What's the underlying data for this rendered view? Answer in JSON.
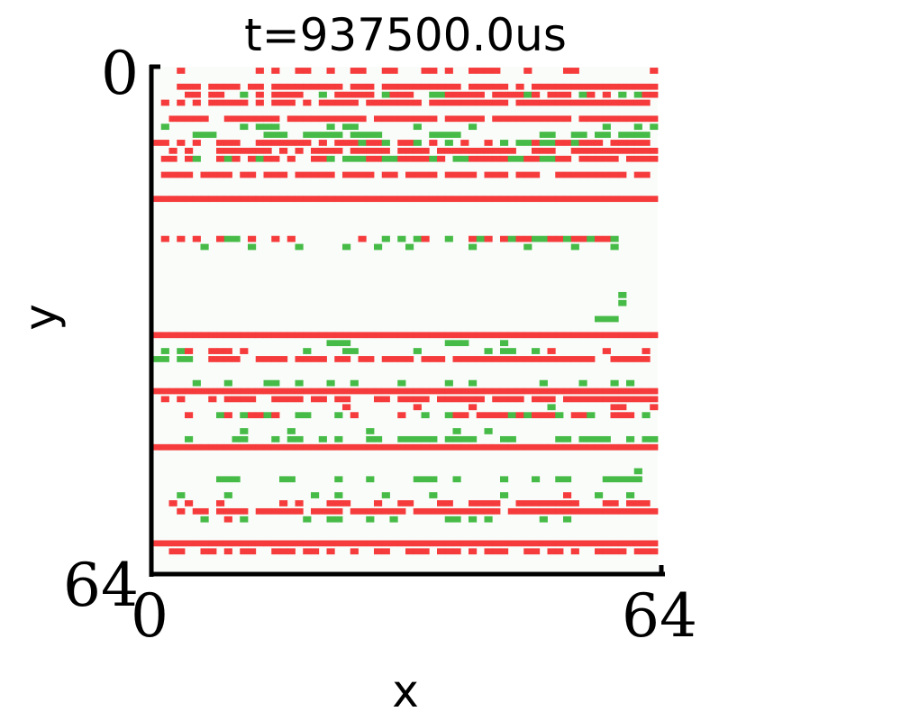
{
  "chart_data": {
    "type": "heatmap",
    "title": "t=937500.0us",
    "xlabel": "x",
    "ylabel": "y",
    "xlim": [
      0,
      64
    ],
    "ylim": [
      64,
      0
    ],
    "x_ticks": [
      "0",
      "64"
    ],
    "y_ticks": [
      "0",
      "64"
    ],
    "grid": false,
    "colors": {
      "background": "#f9fcf9",
      "red": "#f53b3b",
      "green": "#47bb47"
    },
    "legend": {
      "r": "red",
      "g": "green"
    },
    "cells": [
      "...r.........r.r..rr..r..rr..rr...rr.r..rrrr...r....rr.........r",
      "................................................................",
      "...rrr.rrrr.rr.rrrrrrrrr.rrr.rrrrrrrrrr.rrrrr.r.rrrrrrrrrrrrrrrr",
      "....rr.rr..g.r.rrrr..g.rrrrr.grrr..ggrrrrr.rrrrgr.rrr.gr.r.g.grr",
      ".r.r.r.rrrrr.r.rrr.r.rrrrr.rrrrrrr.rrrrrrrrrr.rrrrrrrrrrrrrrrrr.",
      "................................................................",
      "..rrrrr..rrrrrrr.rrrrrrrrrr.rrrrrrrr.rrrrr.rrrrrrrrrr.rrrrrrrrrr",
      ".g.........g.ggg......g.gg.......g......g................g...g.g",
      ".....ggg......ggg..ggggg.gggg......gggg..........gg..gg.gg.gggg.",
      "rr.r.r..rrr..rrrrrrr.r.rrrgrrg.rrg.r.g.r..r.g.ggrggrrgrrr.rrrrr.",
      "..r.r...rrrrrrr.r.r.rrrr.rrrrr.rrrr.rrrrrrrrrr..rrr..rrrrrrrrrrr",
      ".rr.rg..rgr.rgrr.r..rrg.gggrrggrrrrgr.ggrrrrrggrrggrr.rrrrr.rrrr",
      "................................................................",
      ".rrrr.rrrr.rr.rrr.rrrrr.rrrr.rr.rrrr.rrrr.rrr.rrr..rrrrrrrrr.rr.",
      "................................................................",
      "................................................................",
      "rrrrrrrrrrrrrrrrrrrrrrrrrrrrrrrrrrrrrrrrrrrrrrrrrrrrrrrrrrrrrrrr",
      "................................................................",
      "................................................................",
      "................................................................",
      "................................................................",
      ".r.r.r..rgg.r..r.r........r..g.g.gr..g..rgr.rgrrggrrgrrgrrg.....",
      "......g.....g.....g.....g...g...g.......g......g.....g....g.....",
      "................................................................",
      "................................................................",
      "................................................................",
      "................................................................",
      "................................................................",
      "...........................................................g....",
      "...........................................................g....",
      "................................................................",
      "........................................................ggg.....",
      "................................................................",
      "rrrrrrrrrrrrrrrrrrrrrrrrrrrrrrrrrrrrrrrrrrrrrrrrrrrrrrrrrrrrrrrr",
      "......................ggg............ggg....g...................",
      ".g.gr..rrr.r.......g....gg.......g........g.gg..g.r......r....r.",
      "gg.gg..rrrr..rrrr.rrrr.rr.rr.rrrr.rrr.rrrrrrrrrrrrrrrrrr..rrrrr.",
      "................................................................",
      "................................................................",
      ".....g...g....gg..g...g..g.....g.....g..g........g....g...g.g...",
      "rrrrrrrrrrrrrrrrrrrrrrrrrrrrrrrrrrrrrrrrrrrrrrrrrrrrrrrrrrrrrrrr",
      ".r.r...r.rrrr..rrrr.rr.rr...rr.rrrr.rrrrrr.rrrr.rrr.rrrrrrrrrrrr",
      "........................r........r......r.........g.......rr...r",
      "....r...gr.grrgr..gg...g.r.....r..g..grr.rrrrgrgrrrg.rrg..rrr.g.",
      "................................................................",
      "...........g.....g.........g..........g...g.....................",
      "....g.....gg...g.gg..g.g...gg..ggggg.gggg...gg.....gg.gggg..g.gg",
      "rrrrrrrrrrrrrrrrrrrrrrrrrrrrrrrrrrrrrrrrrrrrrrrrrrrrrrrrrrrrrrrr",
      "................................................................",
      "................................................................",
      ".............................................................g..",
      "........ggg.....gg.....g...g.....ggg..g.....g...g..gg....ggggg..",
      "................................................................",
      "...g.....g..........g..g.....g.....g........g.......r...g...g...",
      "..r.r...r.......r.r...rrr...r..rr...rr..rrrr..rrrrrrrr...rr.rrr.",
      "...r.rr.rrrr.rrrrrr.rrrr.rrrrrrr.rrrrrrrrrrr.rrrrrrrrrrrrrrrrrrr",
      "......g..r.g.......g..gg...g..g......gg.g.g......g..g...........",
      "................................................................",
      "................................................................",
      "rrrrrrrrrrrrrrrrrrrrrrrrrrrrrrrrrrrrrrrrrrrrrrrrrrrrrrrrrrrrrrrr",
      "..rr..rr.r.rr..rrr.rr.r..r..rr..rrr.rrr.r.rrr..rr.rr.r..rrrr.rrr",
      "................................................................",
      "................................................................"
    ]
  }
}
